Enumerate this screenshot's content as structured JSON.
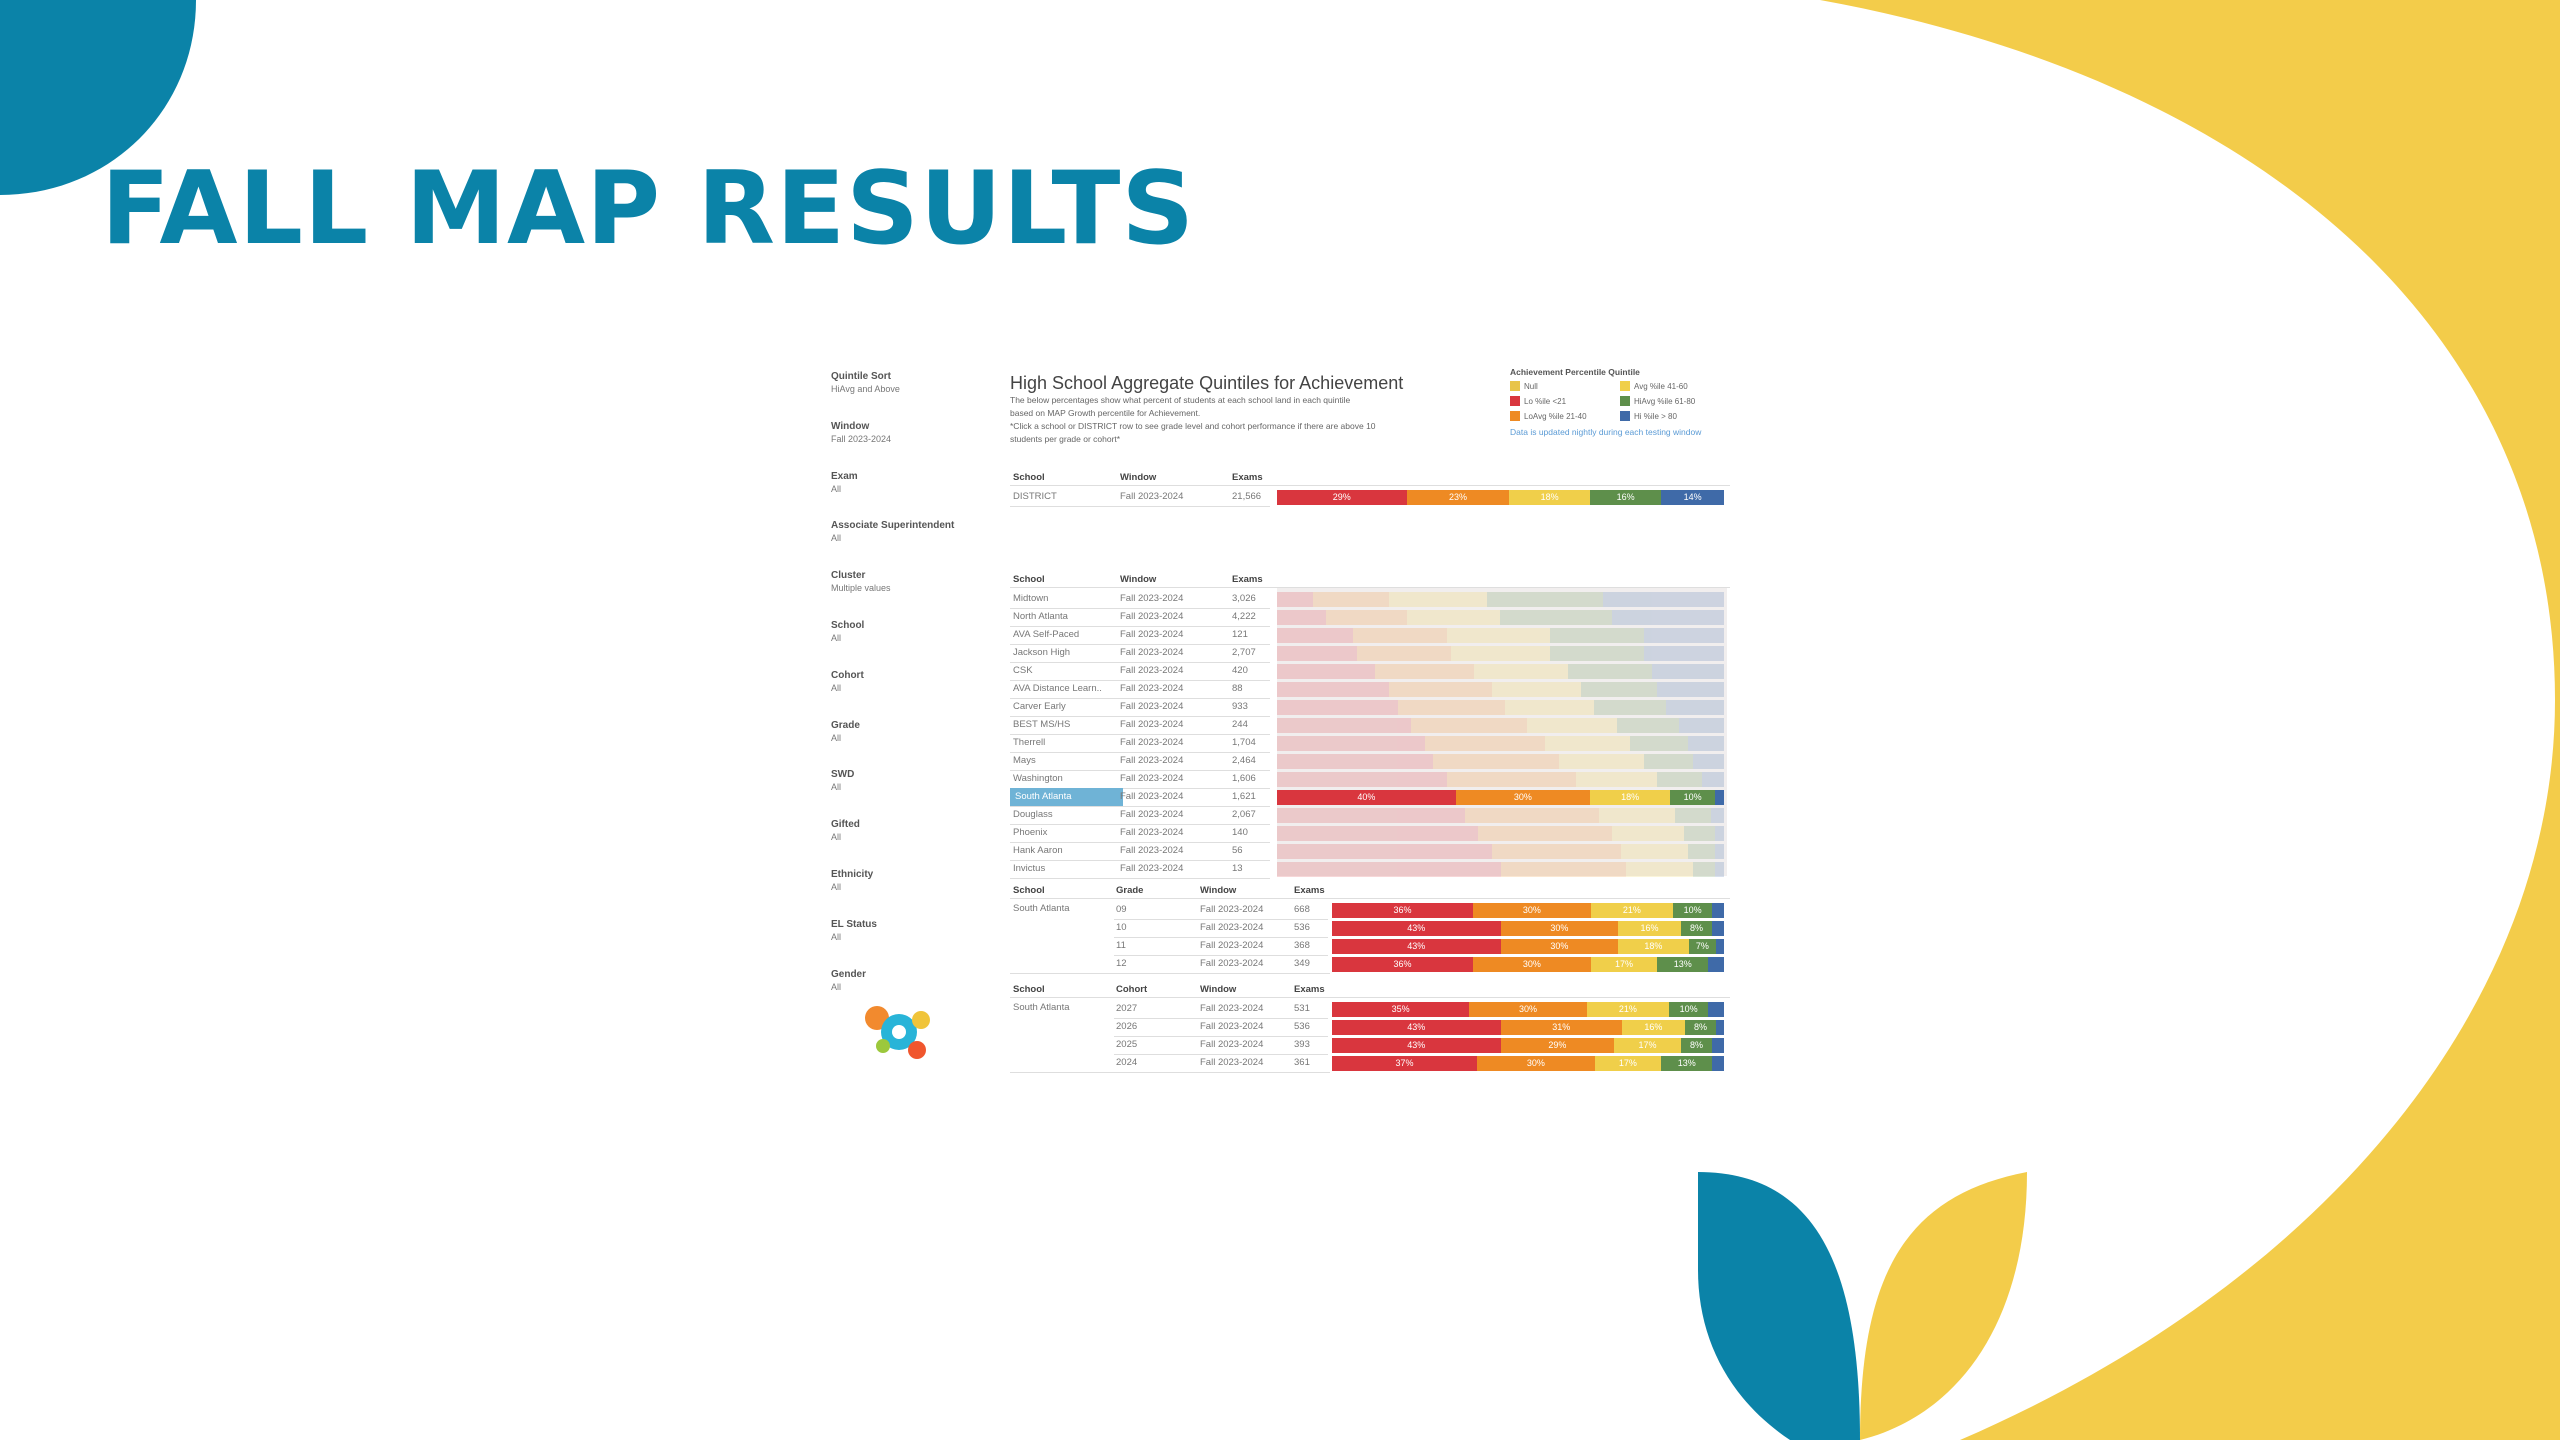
{
  "slide": {
    "title": "FALL MAP RESULTS"
  },
  "colors": {
    "teal": "#0b83a8",
    "yellow": "#f3cc4a",
    "lo": "#d9363e",
    "loavg": "#ee8a23",
    "avg": "#f0cf4a",
    "hiavg": "#5e8f4b",
    "hi": "#3f6aa8",
    "null": "#e8c44a"
  },
  "filters": [
    {
      "label": "Quintile Sort",
      "value": "HiAvg and Above"
    },
    {
      "label": "Window",
      "value": "Fall 2023-2024"
    },
    {
      "label": "Exam",
      "value": "All"
    },
    {
      "label": "Associate Superintendent",
      "value": "All"
    },
    {
      "label": "Cluster",
      "value": "Multiple values"
    },
    {
      "label": "School",
      "value": "All"
    },
    {
      "label": "Cohort",
      "value": "All"
    },
    {
      "label": "Grade",
      "value": "All"
    },
    {
      "label": "SWD",
      "value": "All"
    },
    {
      "label": "Gifted",
      "value": "All"
    },
    {
      "label": "Ethnicity",
      "value": "All"
    },
    {
      "label": "EL Status",
      "value": "All"
    },
    {
      "label": "Gender",
      "value": "All"
    }
  ],
  "dashboard": {
    "title": "High School Aggregate Quintiles for Achievement",
    "description": [
      "The below percentages show what percent of students at each school land in each quintile",
      "based on MAP Growth percentile for Achievement.",
      "*Click a school or DISTRICT row to see grade level and cohort performance if there are above 10",
      "students per grade or cohort*"
    ]
  },
  "legend": {
    "title": "Achievement Percentile Quintile",
    "items": [
      {
        "label": "Null",
        "color": "#e8c44a"
      },
      {
        "label": "Avg %ile 41-60",
        "color": "#f0cf4a"
      },
      {
        "label": "Lo %ile <21",
        "color": "#d9363e"
      },
      {
        "label": "HiAvg %ile 61-80",
        "color": "#5e8f4b"
      },
      {
        "label": "LoAvg %ile 21-40",
        "color": "#ee8a23"
      },
      {
        "label": "Hi %ile > 80",
        "color": "#3f6aa8"
      }
    ],
    "note": "Data is updated nightly during each testing window"
  },
  "district_table": {
    "headers": {
      "school": "School",
      "window": "Window",
      "exams": "Exams"
    },
    "row": {
      "school": "DISTRICT",
      "window": "Fall 2023-2024",
      "exams": "21,566",
      "quintiles": [
        29,
        23,
        18,
        16,
        14
      ],
      "labels": [
        "29%",
        "23%",
        "18%",
        "16%",
        "14%"
      ]
    }
  },
  "school_table": {
    "headers": {
      "school": "School",
      "window": "Window",
      "exams": "Exams"
    },
    "rows": [
      {
        "school": "Midtown",
        "window": "Fall 2023-2024",
        "exams": "3,026",
        "quintiles": [
          8,
          17,
          22,
          26,
          27
        ]
      },
      {
        "school": "North Atlanta",
        "window": "Fall 2023-2024",
        "exams": "4,222",
        "quintiles": [
          11,
          18,
          21,
          25,
          25
        ]
      },
      {
        "school": "AVA Self-Paced",
        "window": "Fall 2023-2024",
        "exams": "121",
        "quintiles": [
          17,
          21,
          23,
          21,
          18
        ]
      },
      {
        "school": "Jackson High",
        "window": "Fall 2023-2024",
        "exams": "2,707",
        "quintiles": [
          18,
          21,
          22,
          21,
          18
        ]
      },
      {
        "school": "CSK",
        "window": "Fall 2023-2024",
        "exams": "420",
        "quintiles": [
          22,
          22,
          21,
          19,
          16
        ]
      },
      {
        "school": "AVA Distance Learn..",
        "window": "Fall 2023-2024",
        "exams": "88",
        "quintiles": [
          25,
          23,
          20,
          17,
          15
        ]
      },
      {
        "school": "Carver Early",
        "window": "Fall 2023-2024",
        "exams": "933",
        "quintiles": [
          27,
          24,
          20,
          16,
          13
        ]
      },
      {
        "school": "BEST MS/HS",
        "window": "Fall 2023-2024",
        "exams": "244",
        "quintiles": [
          30,
          26,
          20,
          14,
          10
        ]
      },
      {
        "school": "Therrell",
        "window": "Fall 2023-2024",
        "exams": "1,704",
        "quintiles": [
          33,
          27,
          19,
          13,
          8
        ]
      },
      {
        "school": "Mays",
        "window": "Fall 2023-2024",
        "exams": "2,464",
        "quintiles": [
          35,
          28,
          19,
          11,
          7
        ]
      },
      {
        "school": "Washington",
        "window": "Fall 2023-2024",
        "exams": "1,606",
        "quintiles": [
          38,
          29,
          18,
          10,
          5
        ]
      },
      {
        "school": "South Atlanta",
        "window": "Fall 2023-2024",
        "exams": "1,621",
        "quintiles": [
          40,
          30,
          18,
          10,
          2
        ],
        "labels": [
          "40%",
          "30%",
          "18%",
          "10%",
          ""
        ],
        "highlight": true
      },
      {
        "school": "Douglass",
        "window": "Fall 2023-2024",
        "exams": "2,067",
        "quintiles": [
          42,
          30,
          17,
          8,
          3
        ]
      },
      {
        "school": "Phoenix",
        "window": "Fall 2023-2024",
        "exams": "140",
        "quintiles": [
          45,
          30,
          16,
          7,
          2
        ]
      },
      {
        "school": "Hank Aaron",
        "window": "Fall 2023-2024",
        "exams": "56",
        "quintiles": [
          48,
          29,
          15,
          6,
          2
        ]
      },
      {
        "school": "Invictus",
        "window": "Fall 2023-2024",
        "exams": "13",
        "quintiles": [
          50,
          28,
          15,
          5,
          2
        ]
      }
    ]
  },
  "grade_table": {
    "headers": {
      "school": "School",
      "grade": "Grade",
      "window": "Window",
      "exams": "Exams"
    },
    "school": "South Atlanta",
    "rows": [
      {
        "grade": "09",
        "window": "Fall 2023-2024",
        "exams": "668",
        "quintiles": [
          36,
          30,
          21,
          10,
          3
        ],
        "labels": [
          "36%",
          "30%",
          "21%",
          "10%",
          ""
        ]
      },
      {
        "grade": "10",
        "window": "Fall 2023-2024",
        "exams": "536",
        "quintiles": [
          43,
          30,
          16,
          8,
          3
        ],
        "labels": [
          "43%",
          "30%",
          "16%",
          "8%",
          ""
        ]
      },
      {
        "grade": "11",
        "window": "Fall 2023-2024",
        "exams": "368",
        "quintiles": [
          43,
          30,
          18,
          7,
          2
        ],
        "labels": [
          "43%",
          "30%",
          "18%",
          "7%",
          ""
        ]
      },
      {
        "grade": "12",
        "window": "Fall 2023-2024",
        "exams": "349",
        "quintiles": [
          36,
          30,
          17,
          13,
          4
        ],
        "labels": [
          "36%",
          "30%",
          "17%",
          "13%",
          ""
        ]
      }
    ]
  },
  "cohort_table": {
    "headers": {
      "school": "School",
      "cohort": "Cohort",
      "window": "Window",
      "exams": "Exams"
    },
    "school": "South Atlanta",
    "rows": [
      {
        "cohort": "2027",
        "window": "Fall 2023-2024",
        "exams": "531",
        "quintiles": [
          35,
          30,
          21,
          10,
          4
        ],
        "labels": [
          "35%",
          "30%",
          "21%",
          "10%",
          ""
        ]
      },
      {
        "cohort": "2026",
        "window": "Fall 2023-2024",
        "exams": "536",
        "quintiles": [
          43,
          31,
          16,
          8,
          2
        ],
        "labels": [
          "43%",
          "31%",
          "16%",
          "8%",
          ""
        ]
      },
      {
        "cohort": "2025",
        "window": "Fall 2023-2024",
        "exams": "393",
        "quintiles": [
          43,
          29,
          17,
          8,
          3
        ],
        "labels": [
          "43%",
          "29%",
          "17%",
          "8%",
          ""
        ]
      },
      {
        "cohort": "2024",
        "window": "Fall 2023-2024",
        "exams": "361",
        "quintiles": [
          37,
          30,
          17,
          13,
          3
        ],
        "labels": [
          "37%",
          "30%",
          "17%",
          "13%",
          ""
        ]
      }
    ]
  }
}
